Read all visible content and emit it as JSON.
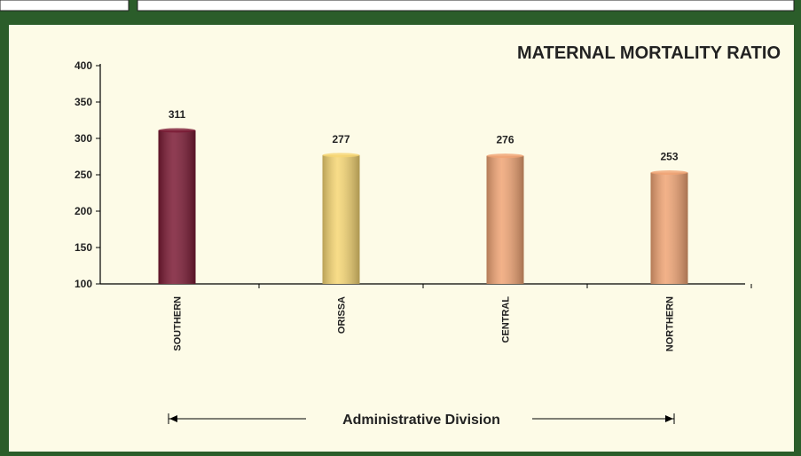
{
  "chart_data": {
    "type": "bar",
    "title": "MATERNAL MORTALITY RATIO",
    "x_label": "Administrative Division",
    "categories": [
      "SOUTHERN",
      "ORISSA",
      "CENTRAL",
      "NORTHERN"
    ],
    "values": [
      311,
      277,
      276,
      253
    ],
    "colors": [
      "#7b1a34",
      "#f6d673",
      "#f0a474",
      "#f0a474"
    ],
    "ylim": [
      100,
      400
    ],
    "yticks": [
      100,
      150,
      200,
      250,
      300,
      350,
      400
    ]
  }
}
